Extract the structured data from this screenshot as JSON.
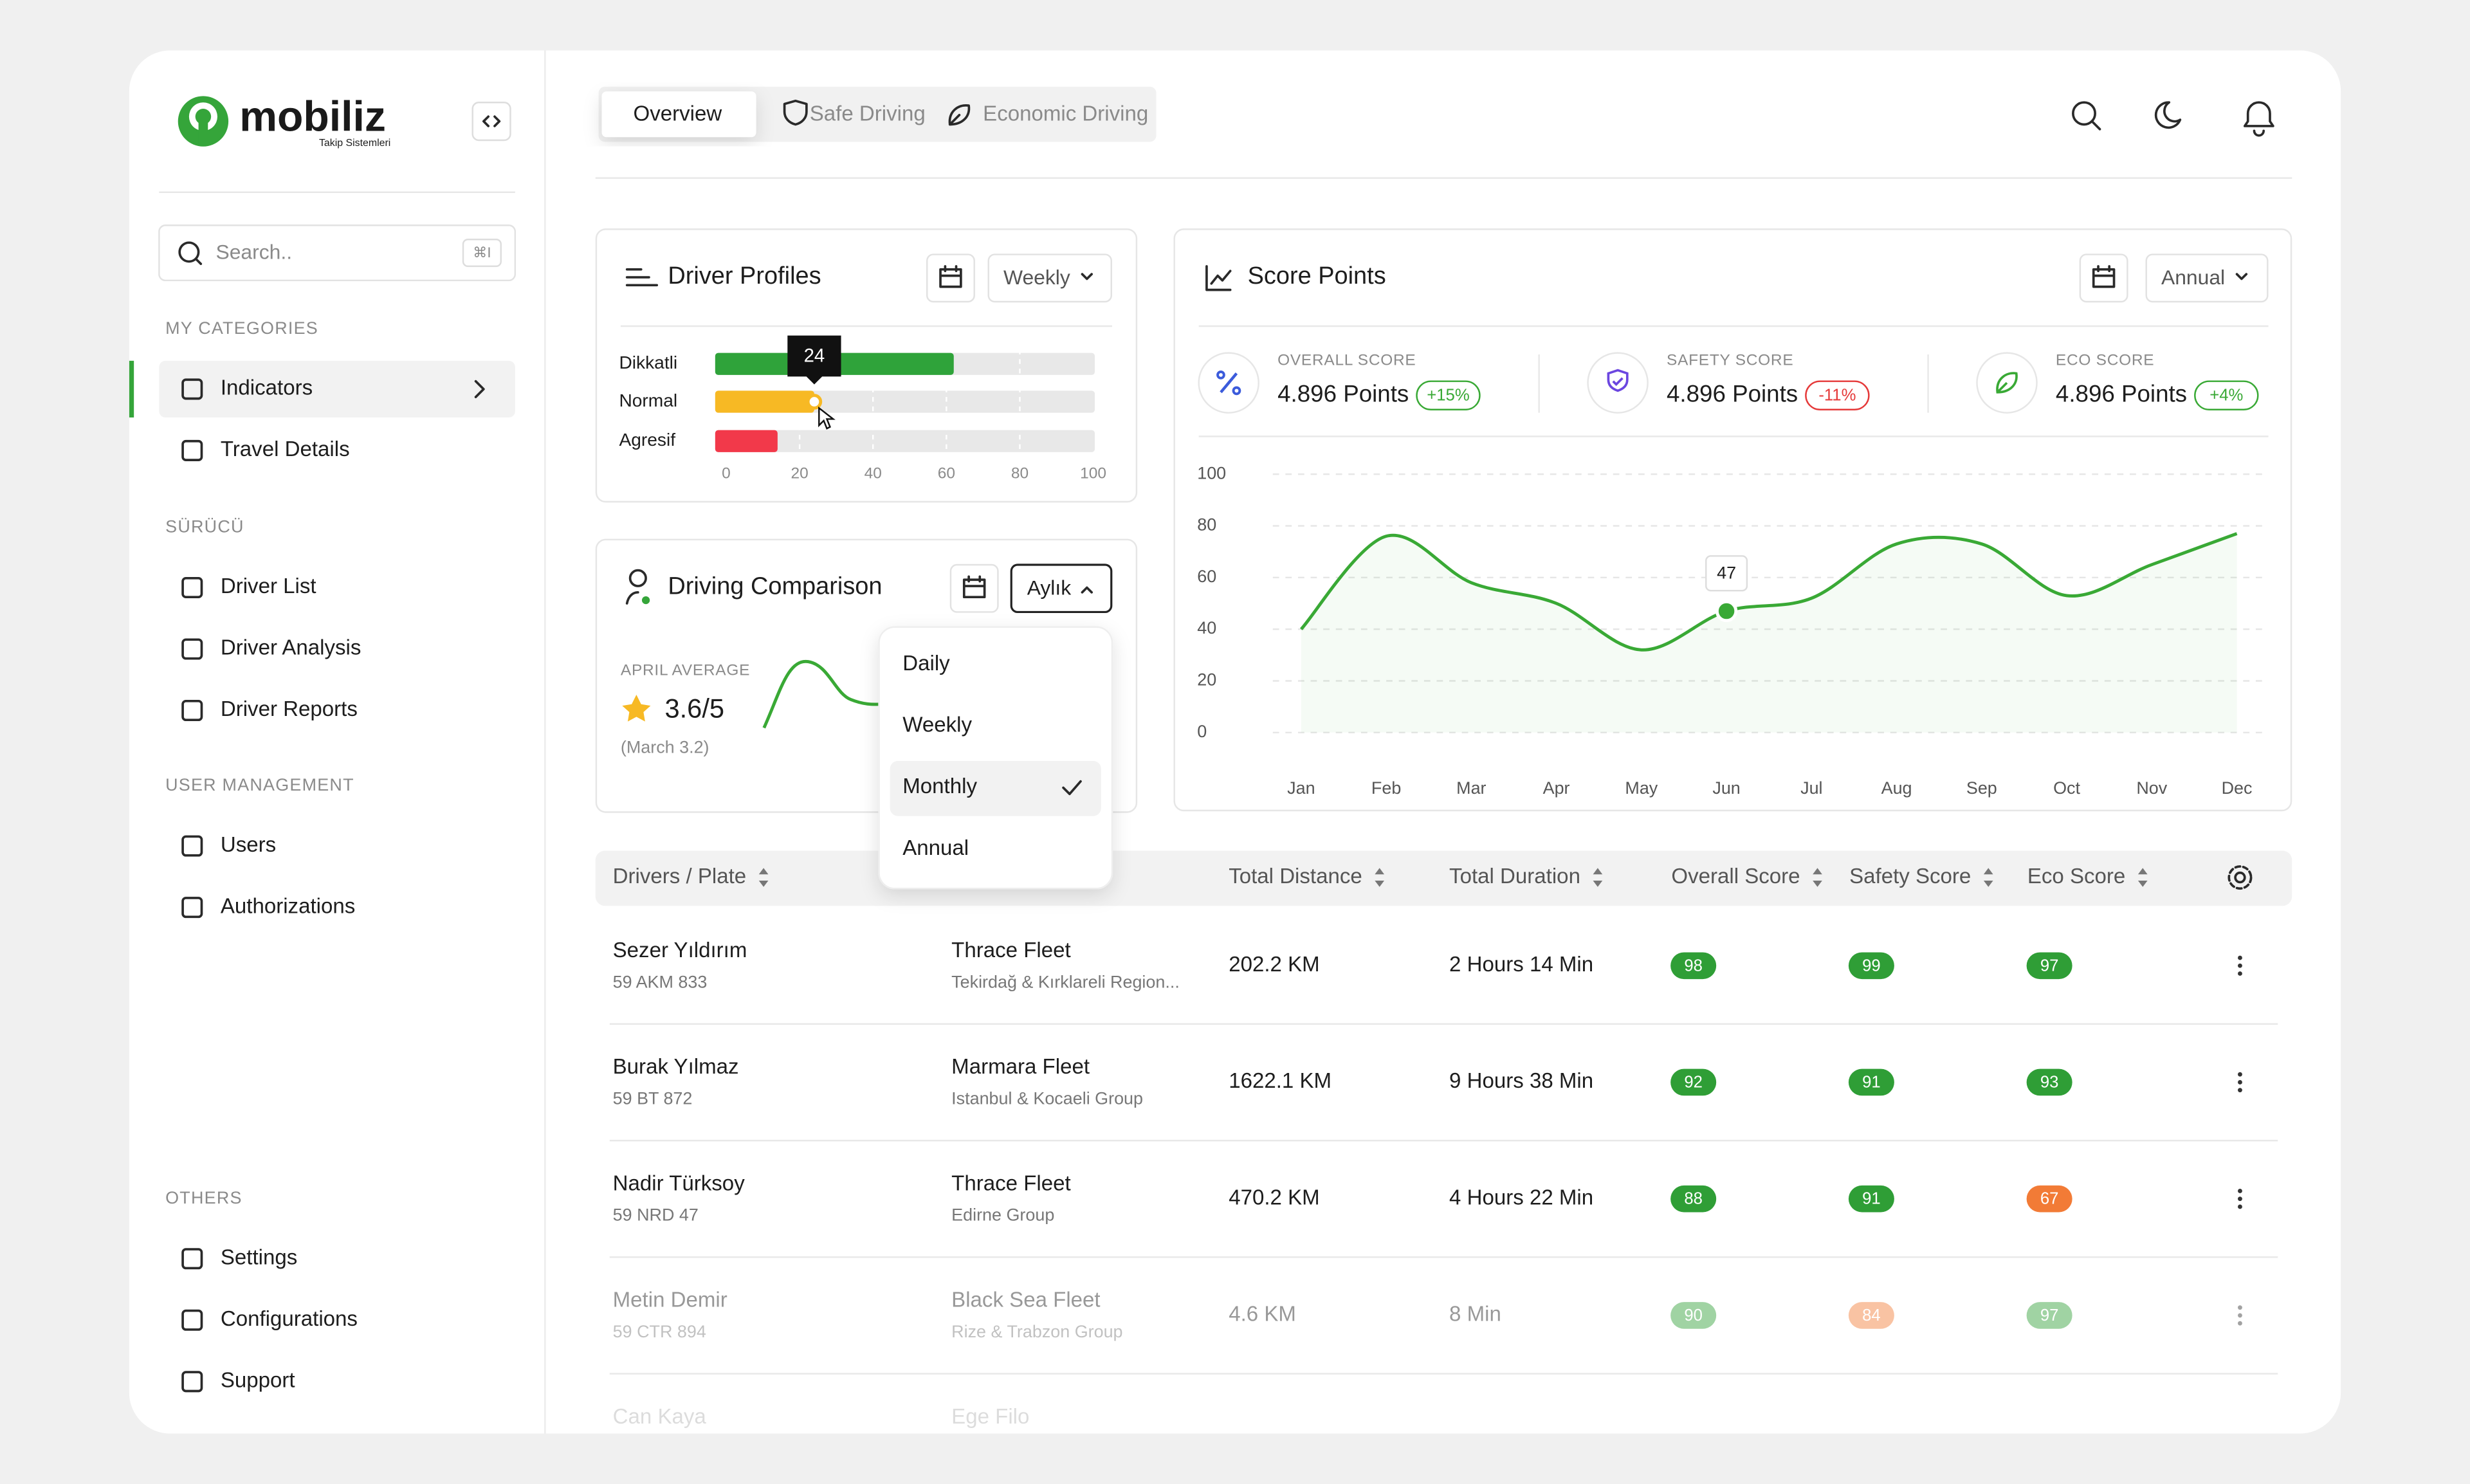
{
  "brand": {
    "name": "mobiliz",
    "tagline": "Takip Sistemleri"
  },
  "search": {
    "placeholder": "Search..",
    "shortcut": "⌘I"
  },
  "nav": [
    {
      "title": "MY CATEGORIES",
      "items": [
        "Indicators",
        "Travel Details"
      ]
    },
    {
      "title": "SÜRÜCÜ",
      "items": [
        "Driver List",
        "Driver Analysis",
        "Driver Reports"
      ]
    },
    {
      "title": "USER MANAGEMENT",
      "items": [
        "Users",
        "Authorizations"
      ]
    },
    {
      "title": "OTHERS",
      "items": [
        "Settings",
        "Configurations",
        "Support"
      ]
    }
  ],
  "tabs": [
    "Overview",
    "Safe Driving",
    "Economic Driving"
  ],
  "chart_data": [
    {
      "type": "bar",
      "title": "Driver Profiles",
      "categories": [
        "Dikkatli",
        "Normal",
        "Agresif"
      ],
      "values": [
        62,
        24,
        14
      ],
      "colors": [
        "#2fa33a",
        "#f7b924",
        "#f2394a"
      ],
      "xlim": [
        0,
        100
      ],
      "xticks": [
        0,
        20,
        40,
        60,
        80,
        100
      ],
      "grid": true
    },
    {
      "type": "line",
      "title": "Score Points",
      "categories": [
        "Jan",
        "Feb",
        "Mar",
        "Apr",
        "May",
        "Jun",
        "Jul",
        "Aug",
        "Sep",
        "Oct",
        "Nov",
        "Dec"
      ],
      "values": [
        40,
        76,
        58,
        50,
        32,
        47,
        52,
        73,
        73,
        53,
        65,
        77
      ],
      "color": "#39a935",
      "ylim": [
        0,
        100
      ],
      "yticks": [
        0,
        20,
        40,
        60,
        80,
        100
      ],
      "grid": true
    }
  ],
  "driver_profiles": {
    "period": "Weekly"
  },
  "driving_comparison": {
    "title": "Driving Comparison",
    "period": "Aylık",
    "average_label": "APRIL AVERAGE",
    "average": "3.6/5",
    "previous": "(March 3.2)",
    "options": [
      "Daily",
      "Weekly",
      "Monthly",
      "Annual"
    ]
  },
  "score_points": {
    "period": "Annual",
    "metrics": [
      {
        "label": "OVERALL SCORE",
        "value": "4.896 Points",
        "change": "+15%"
      },
      {
        "label": "SAFETY SCORE",
        "value": "4.896 Points",
        "change": "-11%"
      },
      {
        "label": "ECO SCORE",
        "value": "4.896 Points",
        "change": "+4%"
      }
    ]
  },
  "table": {
    "headers": [
      "Drivers / Plate",
      "Total Distance",
      "Total Duration",
      "Overall Score",
      "Safety Score",
      "Eco Score"
    ],
    "rows": [
      {
        "name": "Sezer Yıldırım",
        "plate": "59 AKM 833",
        "fleet": "Thrace Fleet",
        "group": "Tekirdağ & Kırklareli Region...",
        "distance": "202.2 KM",
        "duration": "2 Hours 14 Min",
        "overall": 98,
        "safety": 99,
        "eco": 97
      },
      {
        "name": "Burak Yılmaz",
        "plate": "59 BT 872",
        "fleet": "Marmara Fleet",
        "group": "Istanbul & Kocaeli Group",
        "distance": "1622.1 KM",
        "duration": "9 Hours 38 Min",
        "overall": 92,
        "safety": 91,
        "eco": 93
      },
      {
        "name": "Nadir Türksoy",
        "plate": "59 NRD 47",
        "fleet": "Thrace Fleet",
        "group": "Edirne Group",
        "distance": "470.2 KM",
        "duration": "4 Hours 22 Min",
        "overall": 88,
        "safety": 91,
        "eco": 67
      },
      {
        "name": "Metin Demir",
        "plate": "59 CTR 894",
        "fleet": "Black Sea Fleet",
        "group": "Rize & Trabzon Group",
        "distance": "4.6 KM",
        "duration": "8 Min",
        "overall": 90,
        "safety": 84,
        "eco": 97
      },
      {
        "name": "Can Kaya",
        "fleet": "Ege Filo"
      }
    ]
  }
}
